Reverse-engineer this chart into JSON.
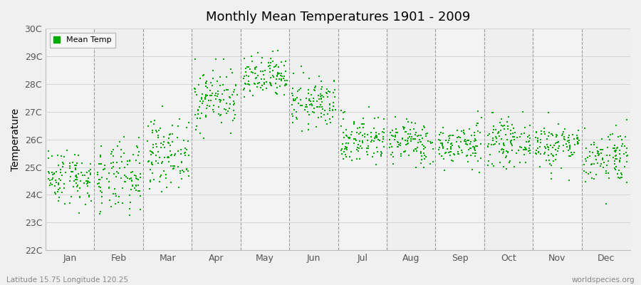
{
  "title": "Monthly Mean Temperatures 1901 - 2009",
  "ylabel": "Temperature",
  "xlabel": "",
  "subtitle_left": "Latitude 15.75 Longitude 120.25",
  "subtitle_right": "worldspecies.org",
  "legend_label": "Mean Temp",
  "marker_color": "#00aa00",
  "background_color": "#f0f0f0",
  "plot_bg_color": "#f8f8f8",
  "ylim": [
    22,
    30
  ],
  "yticks": [
    22,
    23,
    24,
    25,
    26,
    27,
    28,
    29,
    30
  ],
  "ytick_labels": [
    "22C",
    "23C",
    "24C",
    "25C",
    "26C",
    "27C",
    "28C",
    "29C",
    "30C"
  ],
  "months": [
    "Jan",
    "Feb",
    "Mar",
    "Apr",
    "May",
    "Jun",
    "Jul",
    "Aug",
    "Sep",
    "Oct",
    "Nov",
    "Dec"
  ],
  "month_means": [
    24.65,
    24.55,
    25.5,
    27.5,
    28.2,
    27.3,
    26.0,
    25.9,
    25.8,
    25.9,
    25.8,
    25.4
  ],
  "month_stds": [
    0.5,
    0.65,
    0.6,
    0.55,
    0.4,
    0.45,
    0.45,
    0.4,
    0.38,
    0.4,
    0.42,
    0.5
  ],
  "month_mins": [
    23.0,
    22.8,
    24.0,
    26.0,
    27.2,
    25.6,
    24.5,
    24.7,
    24.8,
    24.9,
    24.2,
    23.2
  ],
  "month_maxs": [
    26.5,
    26.2,
    27.2,
    28.9,
    29.2,
    28.8,
    27.4,
    27.3,
    27.2,
    27.4,
    27.3,
    26.7
  ],
  "n_years": 109,
  "seed": 42
}
